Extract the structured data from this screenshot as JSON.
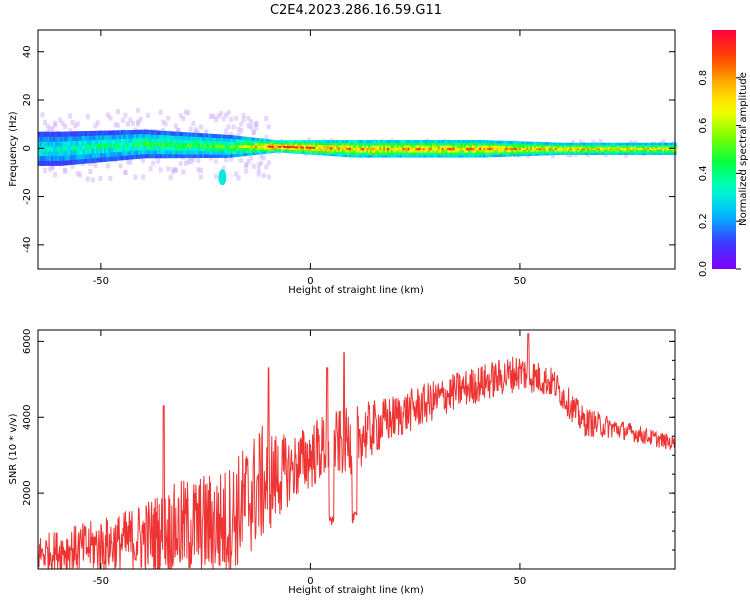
{
  "title": "C2E4.2023.286.16.59.G11",
  "chart_data": [
    {
      "type": "heatmap",
      "xlabel": "Height of straight line (km)",
      "ylabel": "Frequency (Hz)",
      "xlim": [
        -65,
        87
      ],
      "ylim": [
        -50,
        49
      ],
      "xticks": [
        -50,
        0,
        50
      ],
      "yticks": [
        -40,
        -20,
        0,
        20,
        40
      ],
      "colorbar": {
        "label": "Normalized spectral amplitude",
        "ticks": [
          0.0,
          0.2,
          0.4,
          0.6,
          0.8
        ],
        "range": [
          0,
          1
        ],
        "colormap": [
          "#7f00ff",
          "#3a3aff",
          "#00b7ff",
          "#00ffd0",
          "#00ff40",
          "#7fff00",
          "#ffff00",
          "#ffb000",
          "#ff4000",
          "#ff0040"
        ]
      },
      "band": {
        "description_points": [
          {
            "x": -60,
            "center": 0,
            "half_width": 6,
            "level": 0.35
          },
          {
            "x": -40,
            "center": 2,
            "half_width": 5,
            "level": 0.45
          },
          {
            "x": -20,
            "center": 1,
            "half_width": 4,
            "level": 0.5
          },
          {
            "x": -8,
            "center": 1,
            "half_width": 2,
            "level": 0.95
          },
          {
            "x": 10,
            "center": 0,
            "half_width": 3,
            "level": 0.8
          },
          {
            "x": 40,
            "center": 0,
            "half_width": 3,
            "level": 0.8
          },
          {
            "x": 60,
            "center": 0,
            "half_width": 2,
            "level": 0.75
          },
          {
            "x": 85,
            "center": 0,
            "half_width": 2,
            "level": 0.7
          }
        ],
        "outlier_blob": {
          "x": -21,
          "y": -12,
          "level": 0.3
        }
      }
    },
    {
      "type": "line",
      "xlabel": "Height of straight line (km)",
      "ylabel": "SNR (10 * v/v)",
      "xlim": [
        -65,
        87
      ],
      "ylim": [
        0,
        6300
      ],
      "xticks": [
        -50,
        0,
        50
      ],
      "yticks": [
        2000,
        4000,
        6000
      ],
      "color": "#ee3333",
      "envelope": [
        {
          "x": -65,
          "base": 400,
          "amp": 500
        },
        {
          "x": -45,
          "base": 700,
          "amp": 800
        },
        {
          "x": -30,
          "base": 1100,
          "amp": 1300
        },
        {
          "x": -20,
          "base": 1200,
          "amp": 1500
        },
        {
          "x": -12,
          "base": 2200,
          "amp": 1600
        },
        {
          "x": -5,
          "base": 2600,
          "amp": 900
        },
        {
          "x": 3,
          "base": 3200,
          "amp": 900
        },
        {
          "x": 10,
          "base": 3400,
          "amp": 900
        },
        {
          "x": 20,
          "base": 4000,
          "amp": 600
        },
        {
          "x": 35,
          "base": 4700,
          "amp": 500
        },
        {
          "x": 50,
          "base": 5200,
          "amp": 500
        },
        {
          "x": 58,
          "base": 4900,
          "amp": 400
        },
        {
          "x": 65,
          "base": 3900,
          "amp": 400
        },
        {
          "x": 75,
          "base": 3650,
          "amp": 250
        },
        {
          "x": 87,
          "base": 3300,
          "amp": 200
        }
      ],
      "dips": [
        {
          "x": 5,
          "y": 1100
        },
        {
          "x": 10.5,
          "y": 1200
        }
      ],
      "spikes": [
        {
          "x": -35,
          "y": 4300
        },
        {
          "x": -10,
          "y": 5300
        },
        {
          "x": 4,
          "y": 5300
        },
        {
          "x": 8,
          "y": 5700
        },
        {
          "x": 52,
          "y": 6200
        }
      ]
    }
  ]
}
